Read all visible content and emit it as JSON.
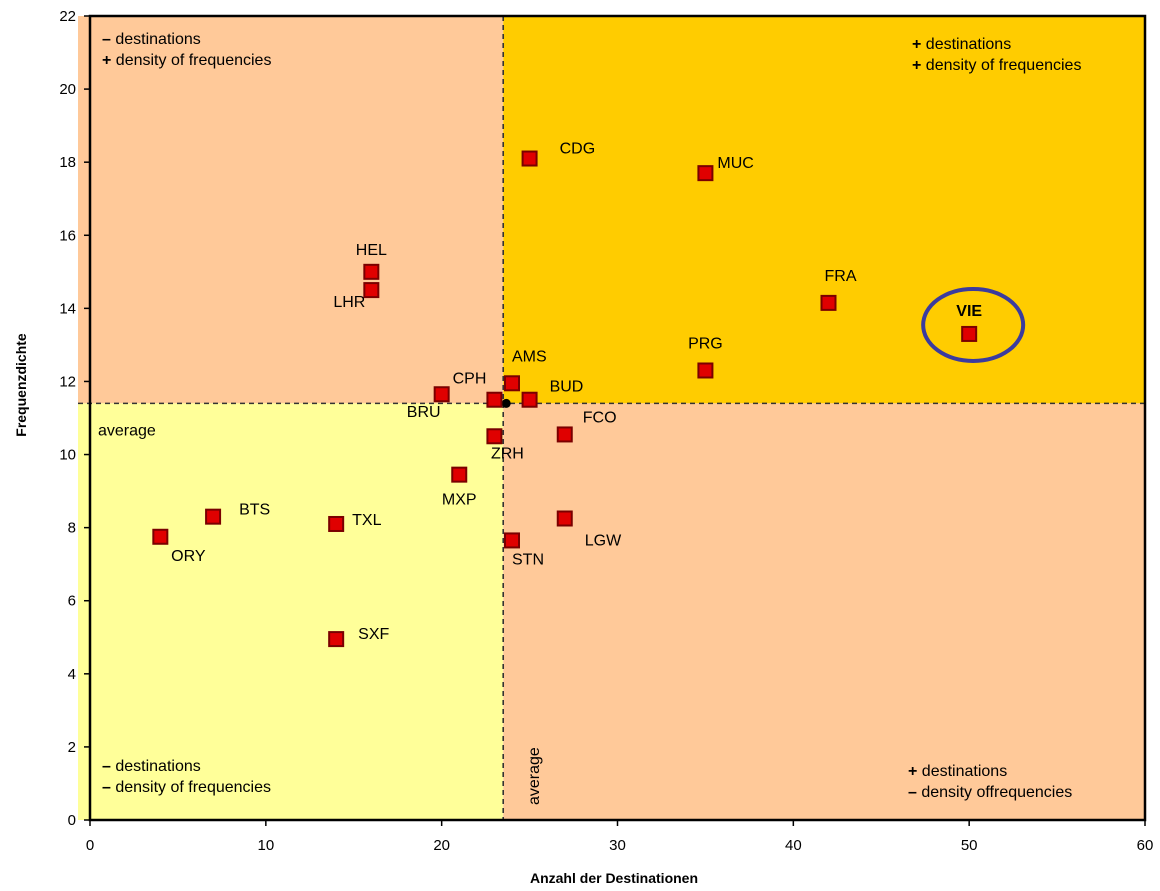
{
  "chart_data": {
    "type": "scatter",
    "xlabel": "Anzahl der Destinationen",
    "ylabel": "Frequenzdichte",
    "xlim": [
      0,
      60
    ],
    "ylim": [
      0,
      22
    ],
    "x_ticks": [
      0,
      10,
      20,
      30,
      40,
      50,
      60
    ],
    "y_ticks": [
      0,
      2,
      4,
      6,
      8,
      10,
      12,
      14,
      16,
      18,
      20,
      22
    ],
    "grid": false,
    "averages": {
      "x": 23.5,
      "y": 11.4,
      "marker_label": "average",
      "label_x": "average",
      "label_y": "average"
    },
    "points": [
      {
        "label": "VIE",
        "x": 50,
        "y": 13.3,
        "highlight": true
      },
      {
        "label": "CDG",
        "x": 25,
        "y": 18.1
      },
      {
        "label": "MUC",
        "x": 35,
        "y": 17.7
      },
      {
        "label": "FRA",
        "x": 42,
        "y": 14.15
      },
      {
        "label": "PRG",
        "x": 35,
        "y": 12.3
      },
      {
        "label": "AMS",
        "x": 24,
        "y": 11.95
      },
      {
        "label": "BUD",
        "x": 25,
        "y": 11.5
      },
      {
        "label": "CPH",
        "x": 23,
        "y": 11.5
      },
      {
        "label": "BRU",
        "x": 20,
        "y": 11.65
      },
      {
        "label": "HEL",
        "x": 16,
        "y": 15.0
      },
      {
        "label": "LHR",
        "x": 16,
        "y": 14.5
      },
      {
        "label": "FCO",
        "x": 27,
        "y": 10.55
      },
      {
        "label": "ZRH",
        "x": 23,
        "y": 10.5
      },
      {
        "label": "MXP",
        "x": 21,
        "y": 9.45
      },
      {
        "label": "LGW",
        "x": 27,
        "y": 8.25
      },
      {
        "label": "STN",
        "x": 24,
        "y": 7.65
      },
      {
        "label": "BTS",
        "x": 7,
        "y": 8.3
      },
      {
        "label": "ORY",
        "x": 4,
        "y": 7.75
      },
      {
        "label": "TXL",
        "x": 14,
        "y": 8.1
      },
      {
        "label": "SXF",
        "x": 14,
        "y": 4.95
      }
    ],
    "quadrants": {
      "top_left": {
        "sign1": "–",
        "line1": "destinations",
        "sign2": "+",
        "line2": "density of frequencies",
        "color": "#FFC999"
      },
      "top_right": {
        "sign1": "+",
        "line1": "destinations",
        "sign2": "+",
        "line2": "density of frequencies",
        "color": "#FFCC00"
      },
      "bottom_left": {
        "sign1": "–",
        "line1": "destinations",
        "sign2": "–",
        "line2": "density of frequencies",
        "color": "#FFFF99"
      },
      "bottom_right": {
        "sign1": "+",
        "line1": "destinations",
        "sign2": "–",
        "line2": "density offrequencies",
        "color": "#FFC999"
      }
    },
    "colors": {
      "marker_fill": "#E00000",
      "marker_border": "#7A0000",
      "highlight_ring": "#3B3B9E"
    }
  }
}
